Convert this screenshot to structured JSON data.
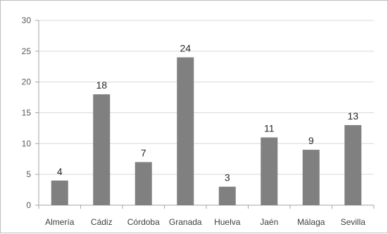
{
  "chart_data": {
    "type": "bar",
    "title": "",
    "xlabel": "",
    "ylabel": "",
    "categories": [
      "Almería",
      "Cádiz",
      "Córdoba",
      "Granada",
      "Huelva",
      "Jaén",
      "Málaga",
      "Sevilla"
    ],
    "values": [
      4,
      18,
      7,
      24,
      3,
      11,
      9,
      13
    ],
    "data_labels": [
      "4",
      "18",
      "7",
      "24",
      "3",
      "11",
      "9",
      "13"
    ],
    "ylim": [
      0,
      30
    ],
    "yticks": [
      0,
      5,
      10,
      15,
      20,
      25,
      30
    ],
    "ytick_labels": [
      "0",
      "5",
      "10",
      "15",
      "20",
      "25",
      "30"
    ],
    "grid": true,
    "legend": "none",
    "colors": {
      "bar": "#808080",
      "grid": "#d9d9d9",
      "axis": "#a6a6a6"
    }
  }
}
